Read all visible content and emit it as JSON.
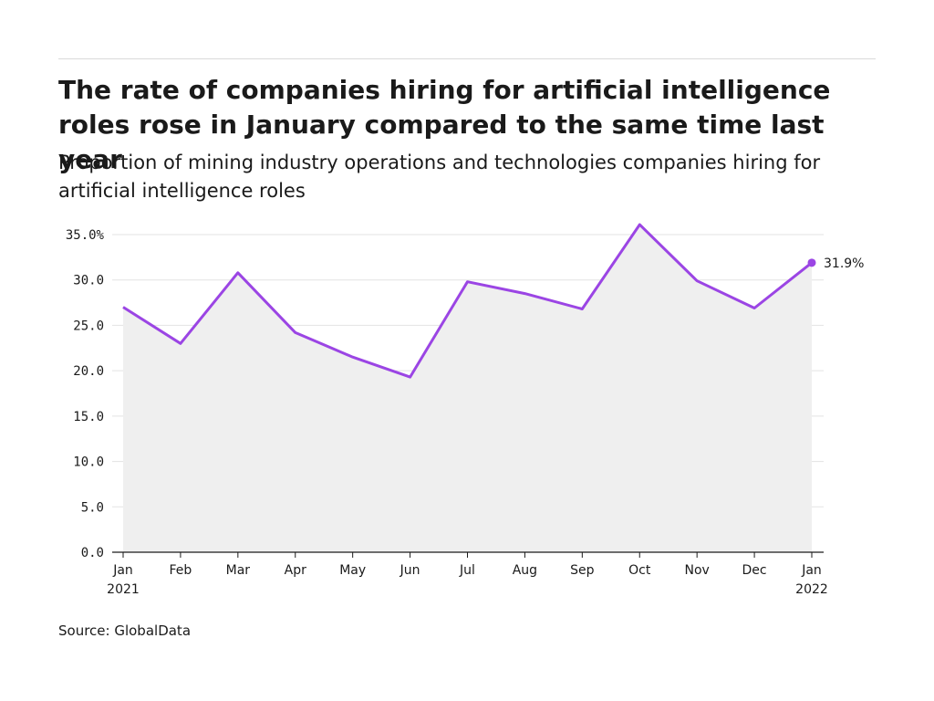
{
  "title": "The rate of companies hiring for artificial intelligence roles rose in January compared to the same time last year",
  "subtitle": "Proportion of mining industry operations and technologies companies hiring for artificial intelligence roles",
  "source": "Source: GlobalData",
  "colors": {
    "line": "#9b45e4",
    "area": "#efefef",
    "grid": "#e3e3e3",
    "axis": "#1a1a1a"
  },
  "chart_data": {
    "type": "area",
    "x": [
      "Jan 2021",
      "Feb 2021",
      "Mar 2021",
      "Apr 2021",
      "May 2021",
      "Jun 2021",
      "Jul 2021",
      "Aug 2021",
      "Sep 2021",
      "Oct 2021",
      "Nov 2021",
      "Dec 2021",
      "Jan 2022"
    ],
    "x_tick_labels": [
      [
        "Jan",
        "2021"
      ],
      [
        "Feb"
      ],
      [
        "Mar"
      ],
      [
        "Apr"
      ],
      [
        "May"
      ],
      [
        "Jun"
      ],
      [
        "Jul"
      ],
      [
        "Aug"
      ],
      [
        "Sep"
      ],
      [
        "Oct"
      ],
      [
        "Nov"
      ],
      [
        "Dec"
      ],
      [
        "Jan",
        "2022"
      ]
    ],
    "values": [
      27.0,
      23.0,
      30.8,
      24.2,
      21.5,
      19.3,
      29.8,
      28.5,
      26.8,
      36.1,
      29.9,
      26.9,
      31.9
    ],
    "ylim": [
      0,
      35
    ],
    "y_ticks": [
      0,
      5,
      10,
      15,
      20,
      25,
      30,
      35
    ],
    "y_tick_labels": [
      "0.0",
      "5.0",
      "10.0",
      "15.0",
      "20.0",
      "25.0",
      "30.0",
      "35.0%"
    ],
    "end_label": "31.9%",
    "grid": true
  }
}
